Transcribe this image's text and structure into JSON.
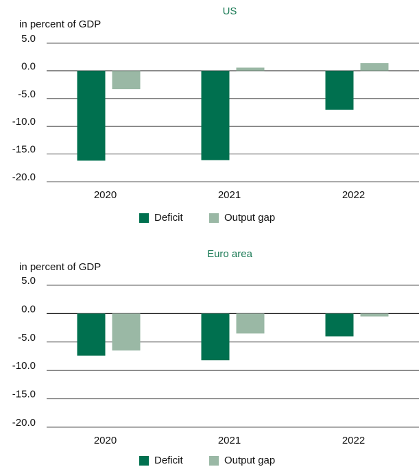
{
  "chart_data": [
    {
      "type": "bar",
      "title": "US",
      "y_label": "in percent of GDP",
      "categories": [
        "2020",
        "2021",
        "2022"
      ],
      "series": [
        {
          "name": "Deficit",
          "color": "#00704f",
          "values": [
            -16.2,
            -16.1,
            -7.0
          ]
        },
        {
          "name": "Output gap",
          "color": "#9ab8a5",
          "values": [
            -3.3,
            0.6,
            1.4
          ]
        }
      ],
      "ylim": [
        -20,
        5
      ],
      "yticks": [
        {
          "value": 5,
          "label": "5.0"
        },
        {
          "value": 0,
          "label": "0.0"
        },
        {
          "value": -5,
          "label": "-5.0"
        },
        {
          "value": -10,
          "label": "-10.0"
        },
        {
          "value": -15,
          "label": "-15.0"
        },
        {
          "value": -20,
          "label": "-20.0"
        }
      ],
      "grid": true,
      "legend": "bottom"
    },
    {
      "type": "bar",
      "title": "Euro area",
      "y_label": "in percent of GDP",
      "categories": [
        "2020",
        "2021",
        "2022"
      ],
      "series": [
        {
          "name": "Deficit",
          "color": "#00704f",
          "values": [
            -7.4,
            -8.2,
            -4.0
          ]
        },
        {
          "name": "Output gap",
          "color": "#9ab8a5",
          "values": [
            -6.5,
            -3.5,
            -0.5
          ]
        }
      ],
      "ylim": [
        -20,
        5
      ],
      "yticks": [
        {
          "value": 5,
          "label": "5.0"
        },
        {
          "value": 0,
          "label": "0.0"
        },
        {
          "value": -5,
          "label": "-5.0"
        },
        {
          "value": -10,
          "label": "-10.0"
        },
        {
          "value": -15,
          "label": "-15.0"
        },
        {
          "value": -20,
          "label": "-20.0"
        }
      ],
      "grid": true,
      "legend": "bottom"
    }
  ]
}
